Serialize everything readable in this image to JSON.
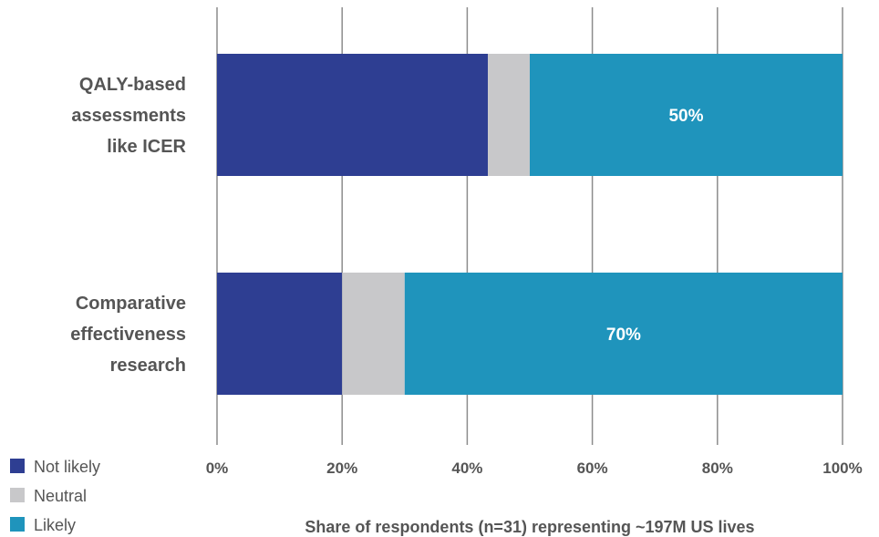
{
  "chart_data": {
    "type": "bar",
    "orientation": "horizontal",
    "stacked": true,
    "categories": [
      [
        "QALY-based",
        "assessments",
        "like ICER"
      ],
      [
        "Comparative",
        "effectiveness",
        "research"
      ]
    ],
    "series": [
      {
        "name": "Not likely",
        "color": "#2e3e92",
        "values": [
          43.3,
          20
        ]
      },
      {
        "name": "Neutral",
        "color": "#c8c8ca",
        "values": [
          6.7,
          10
        ]
      },
      {
        "name": "Likely",
        "color": "#1f94bc",
        "values": [
          50,
          70
        ]
      }
    ],
    "data_labels": [
      {
        "series": "Likely",
        "category_index": 0,
        "text": "50%"
      },
      {
        "series": "Likely",
        "category_index": 1,
        "text": "70%"
      }
    ],
    "xlim": [
      0,
      100
    ],
    "xticks": [
      0,
      20,
      40,
      60,
      80,
      100
    ],
    "xtick_labels": [
      "0%",
      "20%",
      "40%",
      "60%",
      "80%",
      "100%"
    ],
    "xlabel": "Share of respondents (n=31) representing ~197M US lives",
    "grid": "vertical",
    "legend_position": "bottom-left"
  }
}
